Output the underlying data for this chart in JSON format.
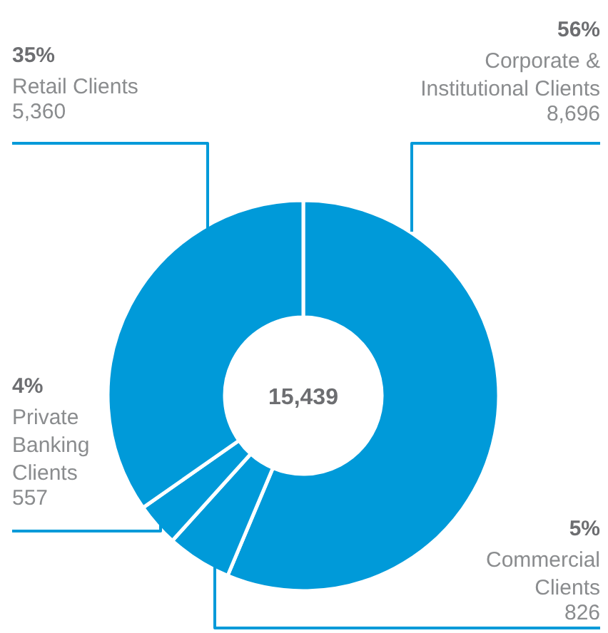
{
  "chart_data": {
    "type": "donut",
    "categories": [
      "Corporate &\nInstitutional Clients",
      "Commercial\nClients",
      "Private\nBanking\nClients",
      "Retail Clients"
    ],
    "values": [
      8696,
      826,
      557,
      5360
    ],
    "value_labels": [
      "8,696",
      "826",
      "557",
      "5,360"
    ],
    "colors": [
      "#009ad9",
      "#009ad9",
      "#009ad9",
      "#009ad9"
    ],
    "annotations": [
      "56%",
      "5%",
      "4%",
      "35%",
      "15,439"
    ]
  }
}
